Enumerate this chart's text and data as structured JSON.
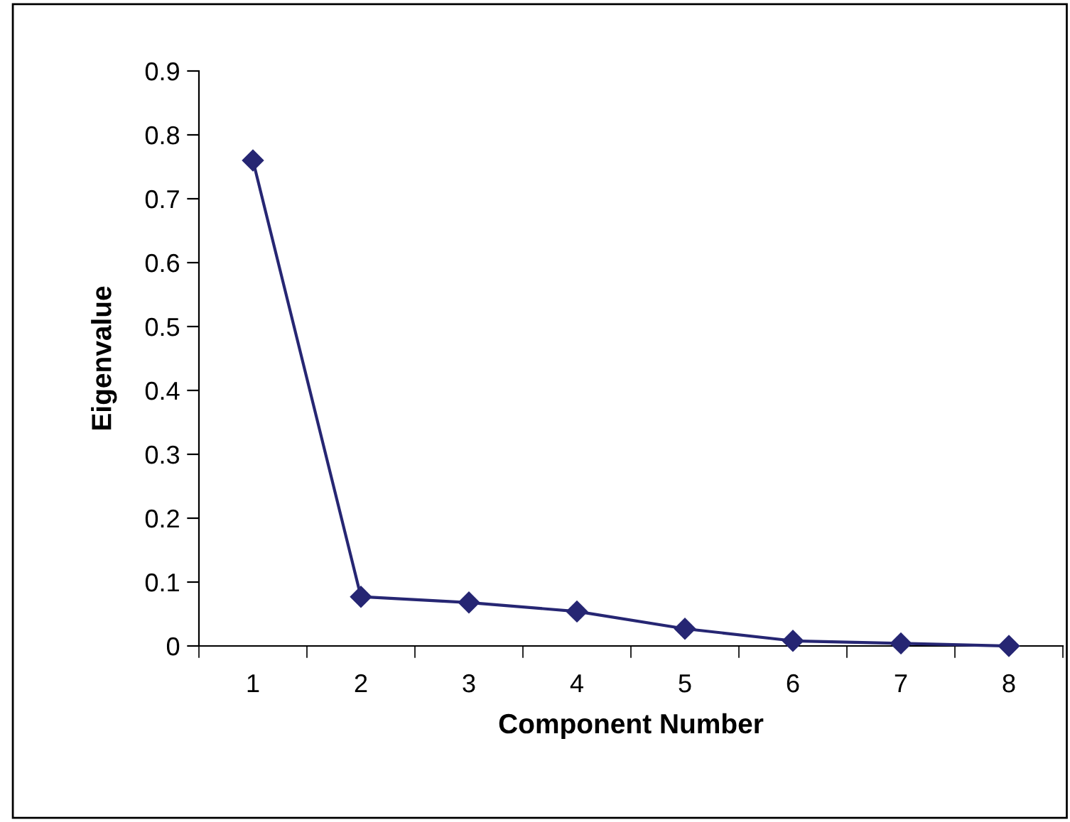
{
  "chart_data": {
    "type": "line",
    "xlabel": "Component Number",
    "ylabel": "Eigenvalue",
    "categories": [
      "1",
      "2",
      "3",
      "4",
      "5",
      "6",
      "7",
      "8"
    ],
    "series": [
      {
        "color": "#262673",
        "values": [
          0.76,
          0.077,
          0.068,
          0.054,
          0.027,
          0.008,
          0.004,
          0.0
        ]
      }
    ],
    "ylim": [
      0,
      0.9
    ],
    "yticks": [
      0,
      0.1,
      0.2,
      0.3,
      0.4,
      0.5,
      0.6,
      0.7,
      0.8,
      0.9
    ],
    "marker": "diamond",
    "line_style": "solid",
    "grid": false,
    "legend": false
  }
}
